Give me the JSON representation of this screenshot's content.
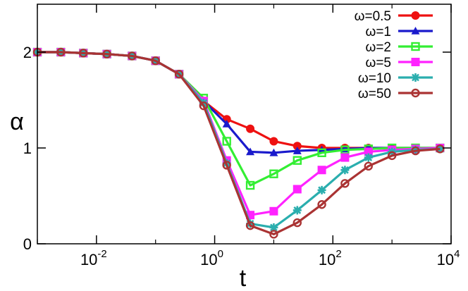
{
  "chart_data": {
    "type": "line",
    "xlabel": "t",
    "ylabel": "α",
    "x_scale": "log",
    "xlim": [
      0.001,
      10000
    ],
    "ylim": [
      0,
      2.5
    ],
    "grid": false,
    "legend_position": "top-right",
    "x_ticks": [
      {
        "value": 0.01,
        "base": "10",
        "exp": "-2"
      },
      {
        "value": 1,
        "base": "10",
        "exp": "0"
      },
      {
        "value": 100,
        "base": "10",
        "exp": "2"
      },
      {
        "value": 10000,
        "base": "10",
        "exp": "4"
      }
    ],
    "y_ticks": [
      {
        "value": 0,
        "label": "0"
      },
      {
        "value": 1,
        "label": "1"
      },
      {
        "value": 2,
        "label": "2"
      }
    ],
    "series": [
      {
        "name": "ω=0.5",
        "color": "#ee1111",
        "marker": "filled-circle",
        "x": [
          0.001,
          0.0025,
          0.006,
          0.015,
          0.04,
          0.1,
          0.25,
          0.65,
          1.6,
          4,
          10,
          25,
          65,
          160,
          400,
          1000,
          2500,
          6500
        ],
        "y": [
          2.0,
          2.0,
          1.99,
          1.98,
          1.96,
          1.91,
          1.77,
          1.49,
          1.3,
          1.2,
          1.07,
          1.02,
          1.0,
          1.0,
          1.0,
          1.0,
          1.0,
          1.0
        ]
      },
      {
        "name": "ω=1",
        "color": "#1a1acc",
        "marker": "filled-triangle",
        "x": [
          0.001,
          0.0025,
          0.006,
          0.015,
          0.04,
          0.1,
          0.25,
          0.65,
          1.6,
          4,
          10,
          25,
          65,
          160,
          400,
          1000,
          2500,
          6500
        ],
        "y": [
          2.0,
          2.0,
          1.99,
          1.98,
          1.96,
          1.91,
          1.77,
          1.49,
          1.25,
          0.96,
          0.95,
          0.97,
          0.98,
          0.99,
          1.0,
          1.0,
          1.0,
          1.0
        ]
      },
      {
        "name": "ω=2",
        "color": "#33ee33",
        "marker": "open-square",
        "x": [
          0.001,
          0.0025,
          0.006,
          0.015,
          0.04,
          0.1,
          0.25,
          0.65,
          1.6,
          4,
          10,
          25,
          65,
          160,
          400,
          1000,
          2500,
          6500
        ],
        "y": [
          2.0,
          2.0,
          1.99,
          1.98,
          1.96,
          1.91,
          1.77,
          1.52,
          1.07,
          0.61,
          0.73,
          0.87,
          0.95,
          0.98,
          0.99,
          1.0,
          1.0,
          1.0
        ]
      },
      {
        "name": "ω=5",
        "color": "#ff22ff",
        "marker": "filled-square",
        "x": [
          0.001,
          0.0025,
          0.006,
          0.015,
          0.04,
          0.1,
          0.25,
          0.65,
          1.6,
          4,
          10,
          25,
          65,
          160,
          400,
          1000,
          2500,
          6500
        ],
        "y": [
          2.0,
          2.0,
          1.99,
          1.98,
          1.96,
          1.91,
          1.77,
          1.49,
          0.87,
          0.3,
          0.34,
          0.57,
          0.77,
          0.9,
          0.96,
          0.98,
          0.99,
          1.0
        ]
      },
      {
        "name": "ω=10",
        "color": "#2aaeae",
        "marker": "asterisk",
        "x": [
          0.001,
          0.0025,
          0.006,
          0.015,
          0.04,
          0.1,
          0.25,
          0.65,
          1.6,
          4,
          10,
          25,
          65,
          160,
          400,
          1000,
          2500,
          6500
        ],
        "y": [
          2.0,
          2.0,
          1.99,
          1.98,
          1.96,
          1.91,
          1.77,
          1.47,
          0.84,
          0.21,
          0.17,
          0.35,
          0.56,
          0.77,
          0.9,
          0.96,
          0.98,
          0.99
        ]
      },
      {
        "name": "ω=50",
        "color": "#aa3333",
        "marker": "open-circle",
        "x": [
          0.001,
          0.0025,
          0.006,
          0.015,
          0.04,
          0.1,
          0.25,
          0.65,
          1.6,
          4,
          10,
          25,
          65,
          160,
          400,
          1000,
          2500,
          6500
        ],
        "y": [
          2.0,
          2.0,
          1.99,
          1.98,
          1.96,
          1.91,
          1.77,
          1.44,
          0.82,
          0.19,
          0.1,
          0.22,
          0.41,
          0.63,
          0.81,
          0.92,
          0.97,
          0.99
        ]
      }
    ]
  }
}
